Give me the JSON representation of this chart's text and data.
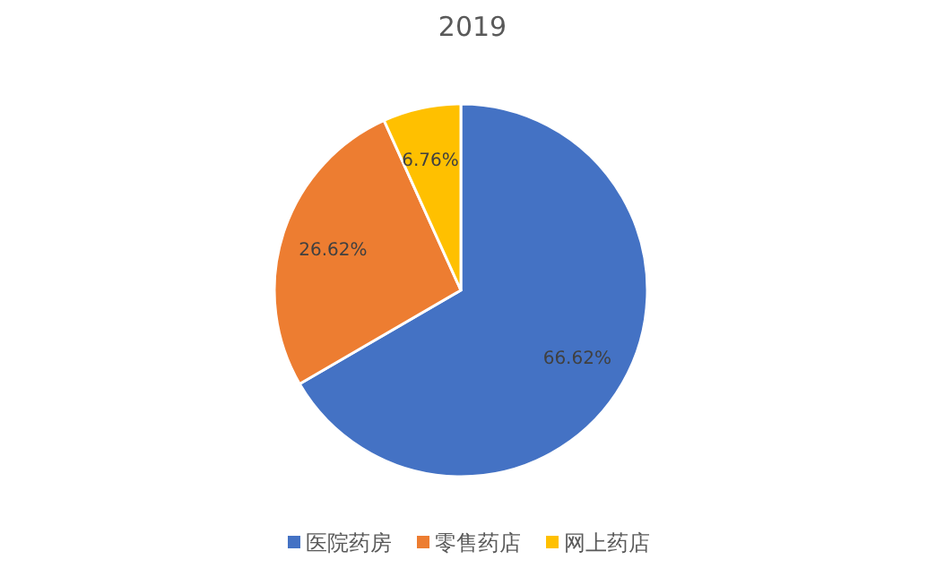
{
  "chart_data": {
    "type": "pie",
    "title": "2019",
    "categories": [
      "医院药房",
      "零售药店",
      "网上药店"
    ],
    "values": [
      66.62,
      26.62,
      6.76
    ],
    "colors": [
      "#4472c4",
      "#ed7d31",
      "#ffc000"
    ],
    "value_labels": [
      "66.62%",
      "26.62%",
      "6.76%"
    ],
    "legend": "bottom"
  }
}
